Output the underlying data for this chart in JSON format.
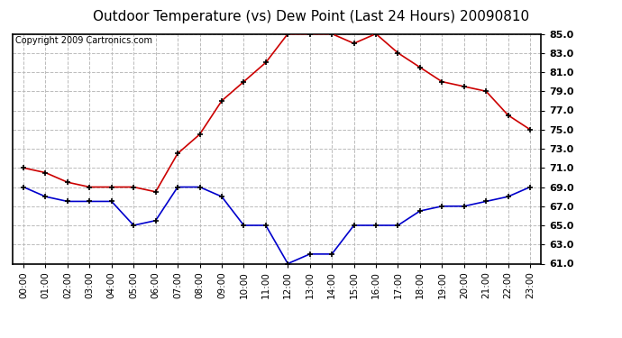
{
  "title": "Outdoor Temperature (vs) Dew Point (Last 24 Hours) 20090810",
  "copyright_text": "Copyright 2009 Cartronics.com",
  "x_labels": [
    "00:00",
    "01:00",
    "02:00",
    "03:00",
    "04:00",
    "05:00",
    "06:00",
    "07:00",
    "08:00",
    "09:00",
    "10:00",
    "11:00",
    "12:00",
    "13:00",
    "14:00",
    "15:00",
    "16:00",
    "17:00",
    "18:00",
    "19:00",
    "20:00",
    "21:00",
    "22:00",
    "23:00"
  ],
  "temp_data": [
    71.0,
    70.5,
    69.5,
    69.0,
    69.0,
    69.0,
    68.5,
    72.5,
    74.5,
    78.0,
    80.0,
    82.0,
    85.0,
    85.0,
    85.0,
    84.0,
    85.0,
    83.0,
    81.5,
    80.0,
    79.5,
    79.0,
    76.5,
    75.0
  ],
  "dew_data": [
    69.0,
    68.0,
    67.5,
    67.5,
    67.5,
    65.0,
    65.5,
    69.0,
    69.0,
    68.0,
    65.0,
    65.0,
    61.0,
    62.0,
    62.0,
    65.0,
    65.0,
    65.0,
    66.5,
    67.0,
    67.0,
    67.5,
    68.0,
    69.0
  ],
  "temp_color": "#cc0000",
  "dew_color": "#0000cc",
  "ylim_min": 61.0,
  "ylim_max": 85.0,
  "ytick_step": 2.0,
  "bg_color": "#ffffff",
  "plot_bg_color": "#ffffff",
  "grid_color": "#bbbbbb",
  "title_fontsize": 11,
  "copyright_fontsize": 7
}
